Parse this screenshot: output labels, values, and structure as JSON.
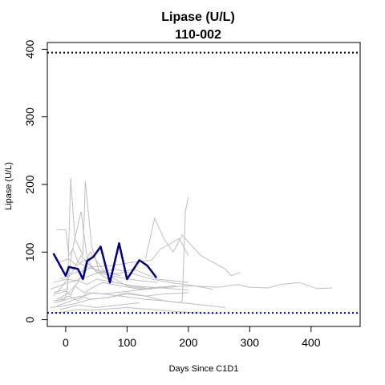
{
  "chart_data": {
    "type": "line",
    "title": "Lipase (U/L)",
    "subtitle": "110-002",
    "xlabel": "Days Since C1D1",
    "ylabel": "Lipase (U/L)",
    "xlim": [
      -30,
      480
    ],
    "ylim": [
      -10,
      410
    ],
    "xticks": [
      0,
      100,
      200,
      300,
      400
    ],
    "yticks": [
      0,
      100,
      200,
      300,
      400
    ],
    "grid": false,
    "reference_lines": [
      {
        "y": 395,
        "style": "dotted",
        "color": "#000000"
      },
      {
        "y": 10,
        "style": "dotted",
        "color": "#0000cc"
      }
    ],
    "colors": {
      "highlight": "#000080",
      "background_series": "#bfbfbf"
    },
    "highlight_series": {
      "name": "110-002",
      "x": [
        -20,
        0,
        5,
        20,
        28,
        35,
        45,
        57,
        72,
        87,
        100,
        120,
        133,
        148
      ],
      "y": [
        98,
        65,
        78,
        75,
        60,
        87,
        93,
        108,
        55,
        113,
        60,
        88,
        80,
        62
      ]
    },
    "background_series": [
      {
        "x": [
          -15,
          0,
          8,
          15,
          22,
          30,
          45,
          60,
          90,
          120,
          150,
          180
        ],
        "y": [
          38,
          42,
          36,
          50,
          45,
          40,
          48,
          55,
          50,
          45,
          48,
          50
        ]
      },
      {
        "x": [
          -10,
          5,
          20,
          35,
          60,
          100,
          140,
          200,
          250,
          280,
          300,
          330,
          350,
          380,
          410,
          435
        ],
        "y": [
          30,
          35,
          28,
          40,
          38,
          42,
          46,
          50,
          48,
          52,
          48,
          47,
          52,
          55,
          46,
          47
        ]
      },
      {
        "x": [
          -20,
          -2,
          3,
          8,
          15,
          28,
          32,
          42,
          55,
          85,
          110,
          150,
          200
        ],
        "y": [
          28,
          30,
          45,
          210,
          120,
          95,
          205,
          110,
          70,
          68,
          75,
          60,
          55
        ]
      },
      {
        "x": [
          -25,
          -5,
          5,
          20,
          40,
          70,
          100,
          130,
          160,
          200
        ],
        "y": [
          18,
          20,
          22,
          25,
          30,
          33,
          40,
          35,
          38,
          40
        ]
      },
      {
        "x": [
          -20,
          2,
          10,
          25,
          35,
          50,
          90,
          120,
          150
        ],
        "y": [
          40,
          45,
          100,
          160,
          90,
          70,
          62,
          58,
          55
        ]
      },
      {
        "x": [
          -15,
          0,
          5,
          12,
          20,
          30,
          45,
          70
        ],
        "y": [
          133,
          133,
          95,
          105,
          85,
          80,
          75,
          70
        ]
      },
      {
        "x": [
          -10,
          5,
          15,
          30,
          45,
          75,
          110,
          140,
          155,
          170,
          185,
          200
        ],
        "y": [
          60,
          65,
          70,
          72,
          78,
          80,
          85,
          88,
          105,
          112,
          120,
          95
        ]
      },
      {
        "x": [
          -20,
          -5,
          10,
          25,
          40,
          70,
          100,
          130,
          160,
          190,
          220,
          260
        ],
        "y": [
          25,
          28,
          32,
          35,
          30,
          33,
          38,
          35,
          28,
          25,
          22,
          18
        ]
      },
      {
        "x": [
          -25,
          -10,
          5,
          20,
          35,
          50,
          80,
          110,
          140,
          170,
          200
        ],
        "y": [
          45,
          50,
          55,
          58,
          52,
          60,
          55,
          50,
          48,
          46,
          44
        ]
      },
      {
        "x": [
          -15,
          0,
          15,
          30,
          45,
          60,
          90,
          130,
          160,
          185,
          190,
          195,
          200
        ],
        "y": [
          20,
          25,
          30,
          35,
          40,
          38,
          35,
          30,
          28,
          25,
          28,
          160,
          182
        ]
      },
      {
        "x": [
          -20,
          -5,
          10,
          25,
          40,
          60,
          80,
          110,
          140
        ],
        "y": [
          35,
          50,
          70,
          95,
          80,
          65,
          55,
          50,
          45
        ]
      },
      {
        "x": [
          -10,
          5,
          20,
          35,
          50,
          70,
          90,
          120
        ],
        "y": [
          15,
          18,
          22,
          20,
          18,
          20,
          22,
          25
        ]
      },
      {
        "x": [
          -20,
          0,
          15,
          30,
          55,
          80,
          110,
          140,
          170,
          210,
          240
        ],
        "y": [
          55,
          60,
          58,
          62,
          70,
          75,
          68,
          60,
          55,
          50,
          45
        ]
      },
      {
        "x": [
          -15,
          5,
          20,
          40,
          60,
          80,
          100,
          130
        ],
        "y": [
          30,
          40,
          55,
          100,
          75,
          60,
          50,
          45
        ]
      },
      {
        "x": [
          -10,
          5,
          18,
          30,
          45,
          65,
          90
        ],
        "y": [
          85,
          90,
          80,
          88,
          75,
          70,
          65
        ]
      },
      {
        "x": [
          130,
          145,
          160,
          175,
          190,
          205,
          220,
          240,
          260,
          270,
          285
        ],
        "y": [
          90,
          150,
          120,
          100,
          125,
          110,
          95,
          85,
          75,
          65,
          70
        ]
      },
      {
        "x": [
          -20,
          0,
          20,
          40,
          70,
          100,
          140,
          180,
          220,
          250
        ],
        "y": [
          10,
          12,
          15,
          14,
          16,
          18,
          15,
          12,
          10,
          9
        ]
      }
    ]
  }
}
